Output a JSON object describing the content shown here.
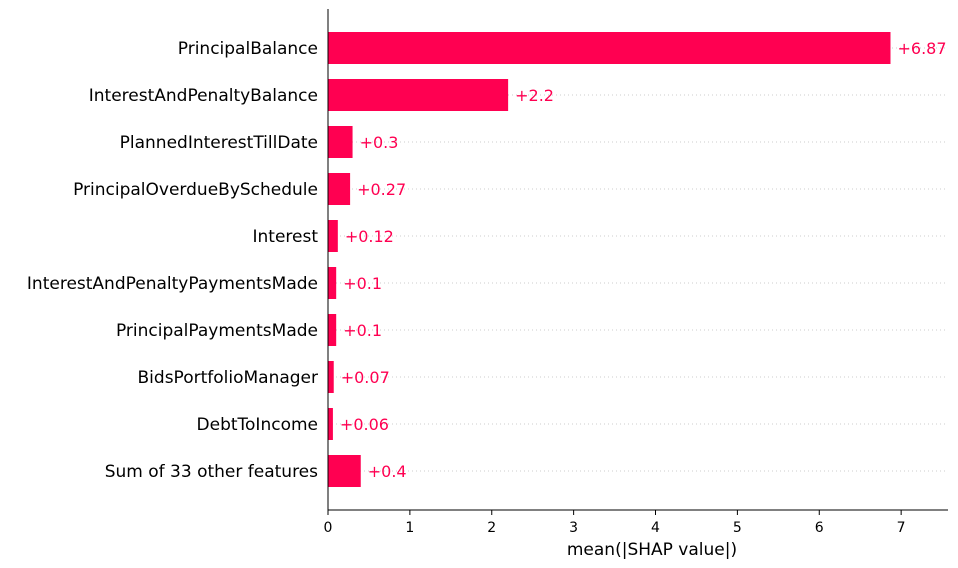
{
  "chart_data": {
    "type": "bar",
    "orientation": "horizontal",
    "categories": [
      "PrincipalBalance",
      "InterestAndPenaltyBalance",
      "PlannedInterestTillDate",
      "PrincipalOverdueBySchedule",
      "Interest",
      "InterestAndPenaltyPaymentsMade",
      "PrincipalPaymentsMade",
      "BidsPortfolioManager",
      "DebtToIncome",
      "Sum of 33 other features"
    ],
    "values": [
      6.87,
      2.2,
      0.3,
      0.27,
      0.12,
      0.1,
      0.1,
      0.07,
      0.06,
      0.4
    ],
    "value_labels": [
      "+6.87",
      "+2.2",
      "+0.3",
      "+0.27",
      "+0.12",
      "+0.1",
      "+0.1",
      "+0.07",
      "+0.06",
      "+0.4"
    ],
    "xlabel": "mean(|SHAP value|)",
    "ylabel": "",
    "title": "",
    "xlim": [
      0,
      7.55
    ],
    "xticks": [
      0,
      1,
      2,
      3,
      4,
      5,
      6,
      7
    ],
    "xtick_labels": [
      "0",
      "1",
      "2",
      "3",
      "4",
      "5",
      "6",
      "7"
    ],
    "grid": "dotted horizontal row guides",
    "legend": "none",
    "colors": {
      "bar": "#ff0051",
      "value_label": "#ff0051",
      "axis": "#000000",
      "grid": "#cccccc"
    }
  }
}
